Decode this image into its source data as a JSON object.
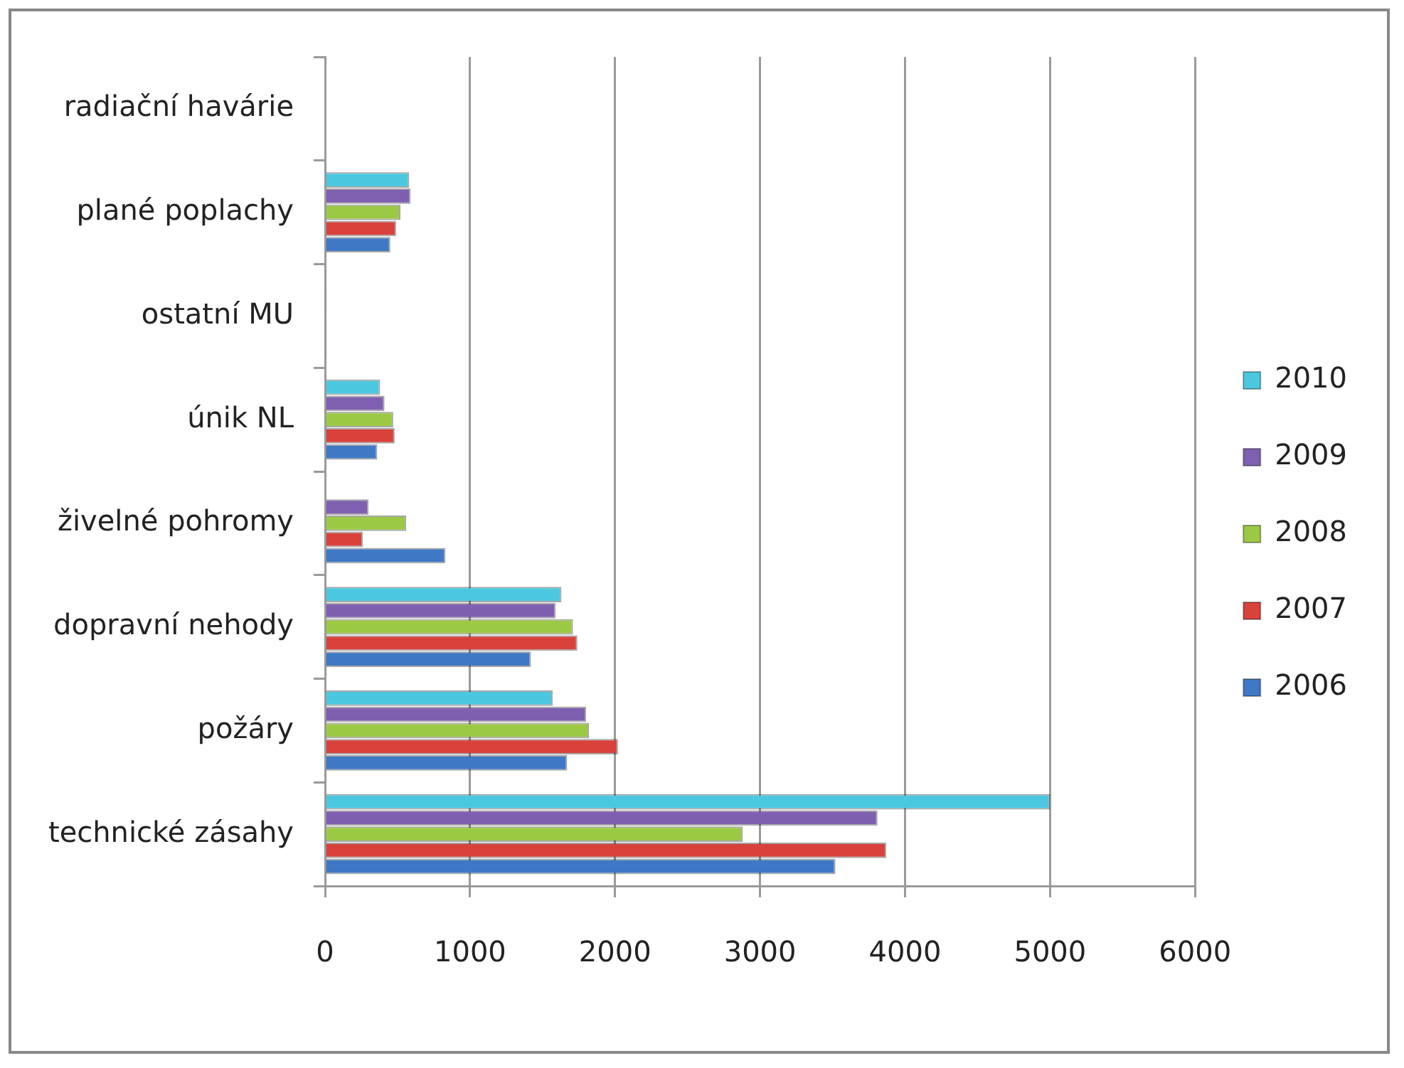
{
  "chart_data": {
    "type": "bar",
    "orientation": "horizontal",
    "categories": [
      "radiační havárie",
      "plané poplachy",
      "ostatní MU",
      "únik NL",
      "živelné pohromy",
      "dopravní nehody",
      "požáry",
      "technické zásahy"
    ],
    "series": [
      {
        "name": "2010",
        "color": "#4bc8e0",
        "values": [
          0,
          580,
          10,
          380,
          0,
          1630,
          1570,
          5000
        ]
      },
      {
        "name": "2009",
        "color": "#7e5fb0",
        "values": [
          0,
          590,
          10,
          410,
          300,
          1590,
          1800,
          3810
        ]
      },
      {
        "name": "2008",
        "color": "#9bc944",
        "values": [
          0,
          520,
          10,
          470,
          560,
          1710,
          1820,
          2880
        ]
      },
      {
        "name": "2007",
        "color": "#d9413b",
        "values": [
          0,
          490,
          10,
          480,
          260,
          1740,
          2020,
          3870
        ]
      },
      {
        "name": "2006",
        "color": "#3f78c4",
        "values": [
          0,
          450,
          10,
          360,
          830,
          1420,
          1670,
          3520
        ]
      }
    ],
    "xlim": [
      0,
      6000
    ],
    "xticks": [
      0,
      1000,
      2000,
      3000,
      4000,
      5000,
      6000
    ],
    "grid": "x",
    "legend": "right"
  }
}
